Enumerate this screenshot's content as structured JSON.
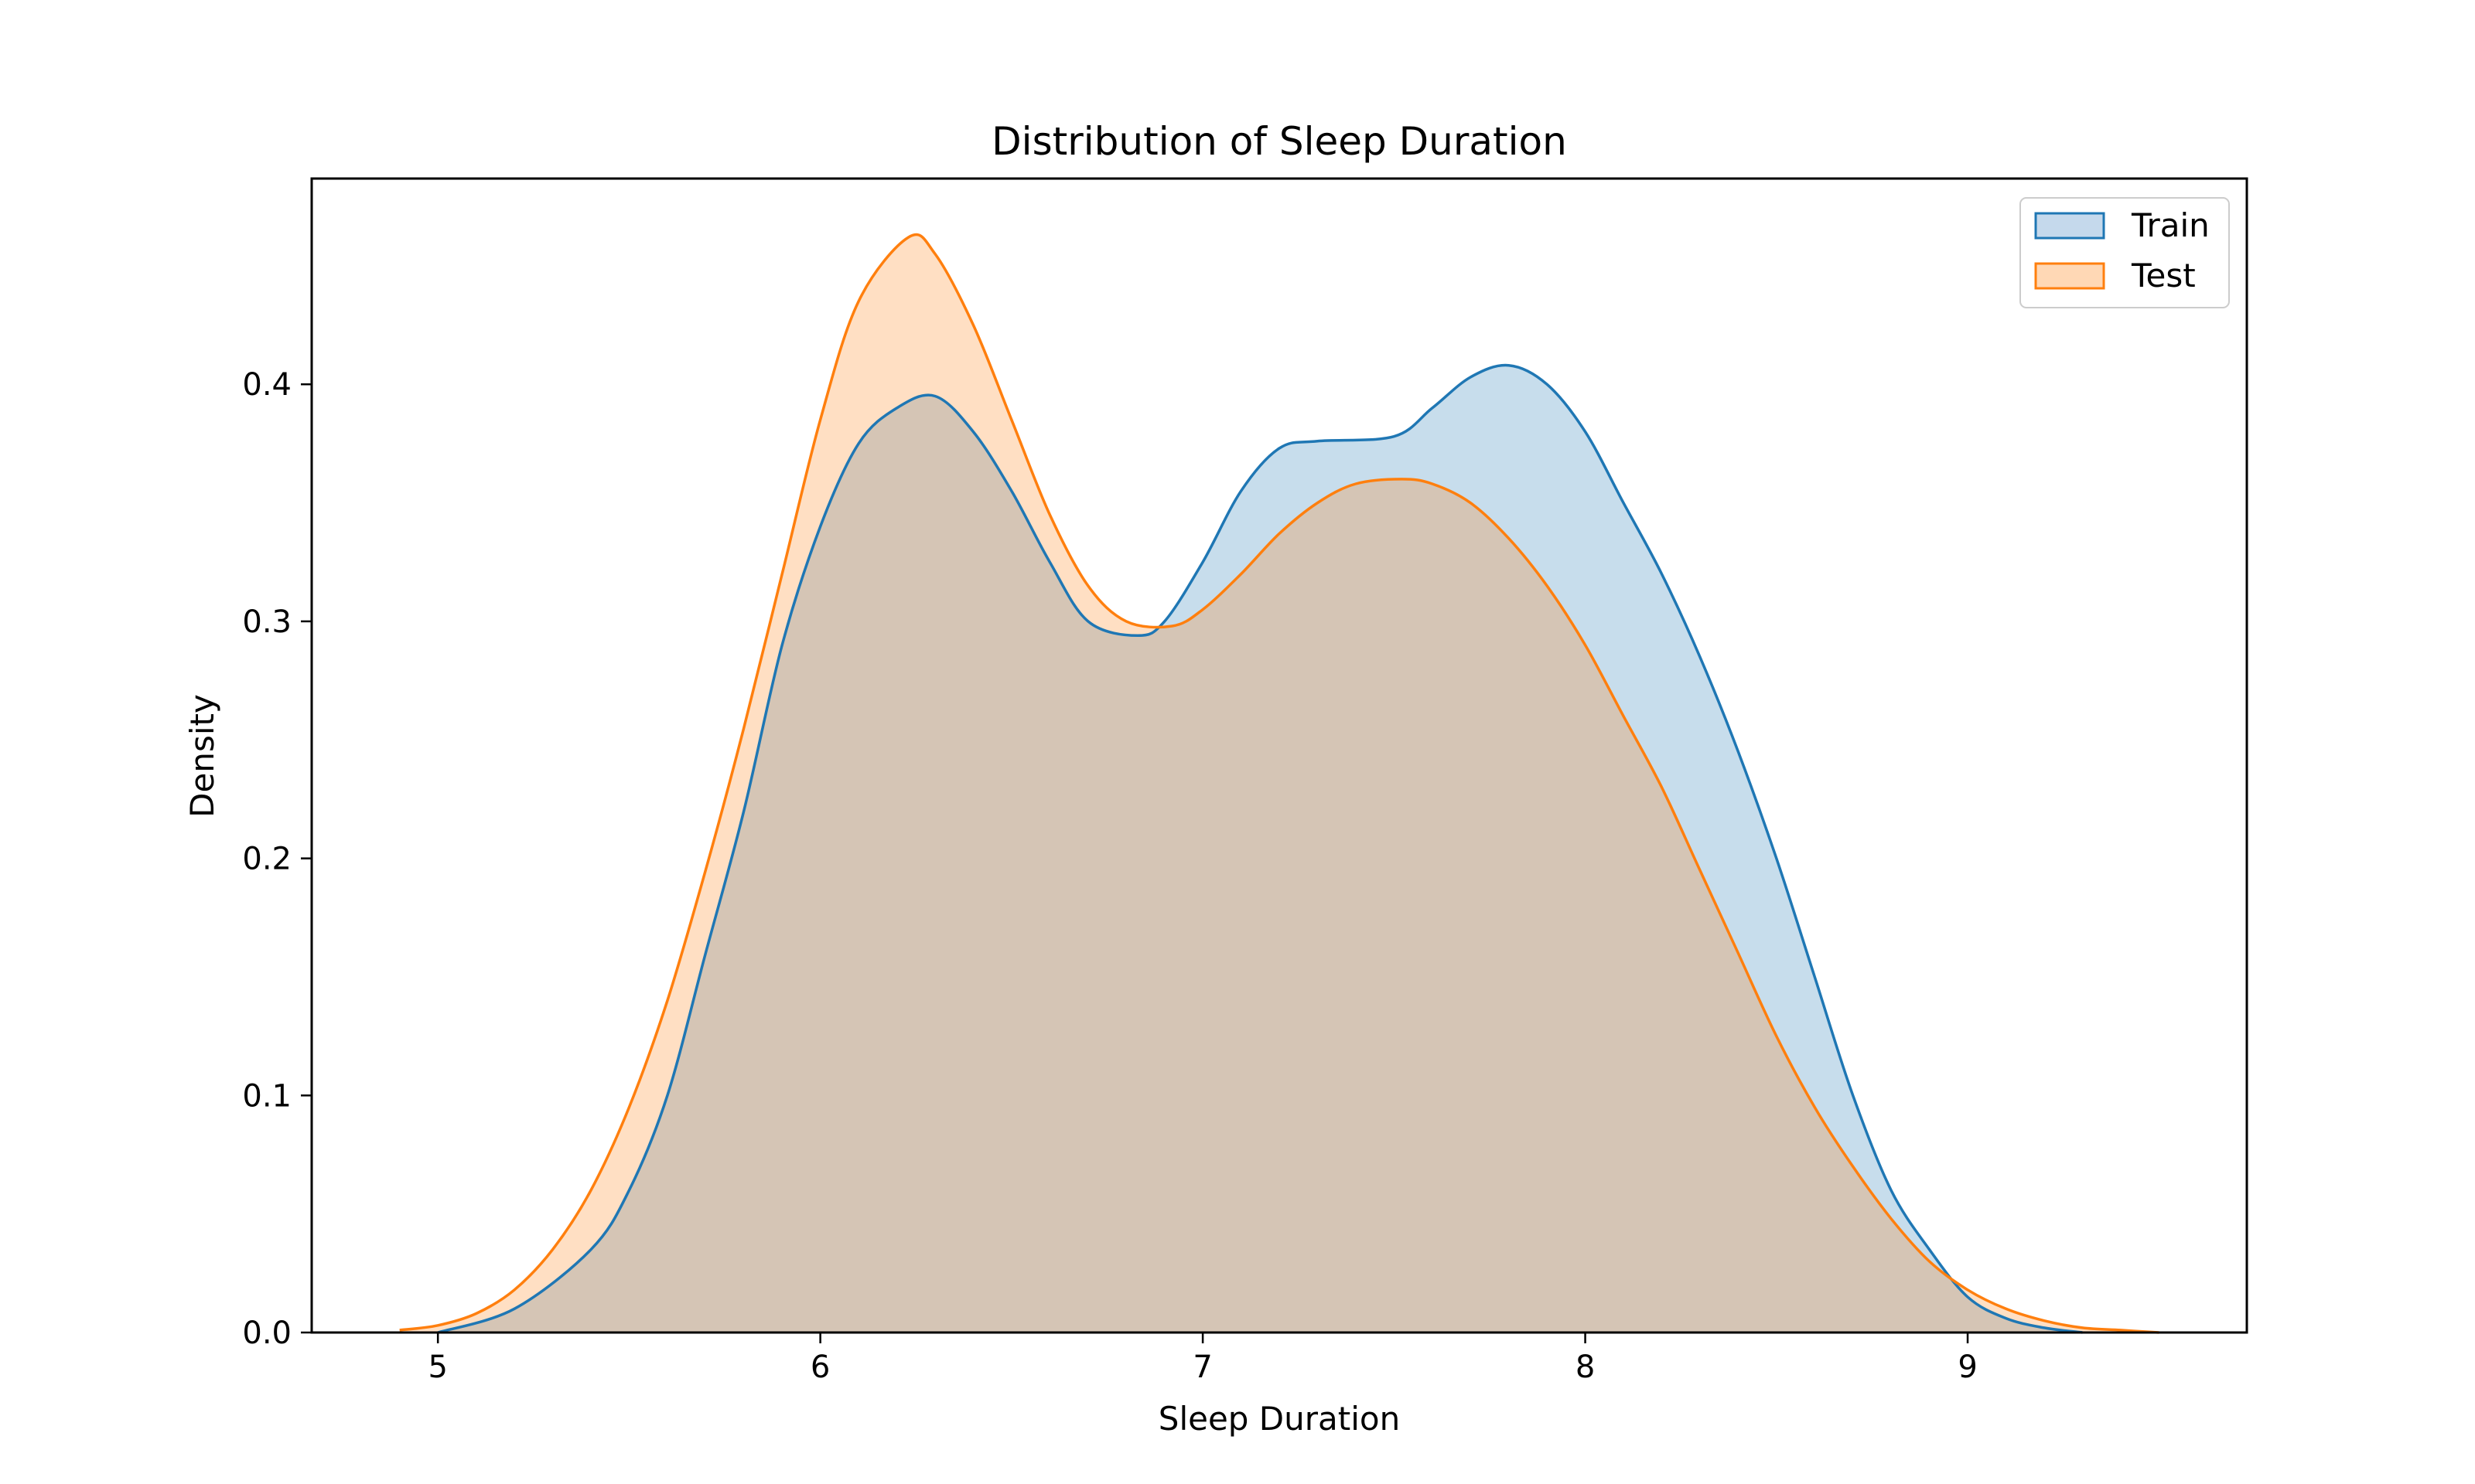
{
  "chart_data": {
    "type": "area",
    "title": "Distribution of Sleep Duration",
    "xlabel": "Sleep Duration",
    "ylabel": "Density",
    "xlim": [
      4.67,
      9.73
    ],
    "ylim": [
      0,
      0.4868
    ],
    "x_ticks": [
      "5",
      "6",
      "7",
      "8",
      "9"
    ],
    "y_ticks": [
      "0.0",
      "0.1",
      "0.2",
      "0.3",
      "0.4"
    ],
    "legend_position": "top-right",
    "grid": false,
    "series": [
      {
        "name": "Train",
        "color": "#1f77b4",
        "fill": "#c5d9ec",
        "x": [
          5.0,
          5.2,
          5.4,
          5.5,
          5.6,
          5.7,
          5.8,
          5.9,
          6.0,
          6.1,
          6.2,
          6.3,
          6.4,
          6.5,
          6.6,
          6.7,
          6.83,
          6.9,
          7.0,
          7.1,
          7.2,
          7.3,
          7.5,
          7.6,
          7.7,
          7.8,
          7.9,
          8.0,
          8.1,
          8.2,
          8.3,
          8.4,
          8.5,
          8.6,
          8.7,
          8.8,
          8.9,
          9.0,
          9.1,
          9.2,
          9.3
        ],
        "y": [
          0.0,
          0.01,
          0.035,
          0.06,
          0.1,
          0.16,
          0.22,
          0.29,
          0.34,
          0.375,
          0.39,
          0.395,
          0.38,
          0.355,
          0.325,
          0.3,
          0.294,
          0.3,
          0.325,
          0.355,
          0.373,
          0.376,
          0.378,
          0.39,
          0.403,
          0.408,
          0.4,
          0.38,
          0.35,
          0.32,
          0.285,
          0.245,
          0.2,
          0.15,
          0.1,
          0.06,
          0.035,
          0.015,
          0.006,
          0.002,
          0.0
        ]
      },
      {
        "name": "Test",
        "color": "#ff7f0e",
        "fill": "#ffd8b5",
        "x": [
          4.9,
          5.0,
          5.1,
          5.2,
          5.3,
          5.4,
          5.5,
          5.6,
          5.7,
          5.8,
          5.9,
          6.0,
          6.1,
          6.23,
          6.3,
          6.4,
          6.5,
          6.6,
          6.7,
          6.8,
          6.92,
          7.0,
          7.1,
          7.2,
          7.3,
          7.4,
          7.52,
          7.6,
          7.7,
          7.8,
          7.9,
          8.0,
          8.1,
          8.2,
          8.3,
          8.4,
          8.5,
          8.6,
          8.7,
          8.8,
          8.9,
          9.0,
          9.1,
          9.2,
          9.3,
          9.4,
          9.5
        ],
        "y": [
          0.001,
          0.003,
          0.008,
          0.018,
          0.035,
          0.06,
          0.095,
          0.14,
          0.195,
          0.255,
          0.32,
          0.385,
          0.435,
          0.462,
          0.455,
          0.425,
          0.385,
          0.345,
          0.315,
          0.3,
          0.298,
          0.305,
          0.32,
          0.337,
          0.35,
          0.358,
          0.36,
          0.358,
          0.35,
          0.335,
          0.315,
          0.29,
          0.26,
          0.23,
          0.195,
          0.16,
          0.125,
          0.095,
          0.07,
          0.048,
          0.03,
          0.018,
          0.01,
          0.005,
          0.002,
          0.001,
          0.0
        ]
      }
    ]
  }
}
